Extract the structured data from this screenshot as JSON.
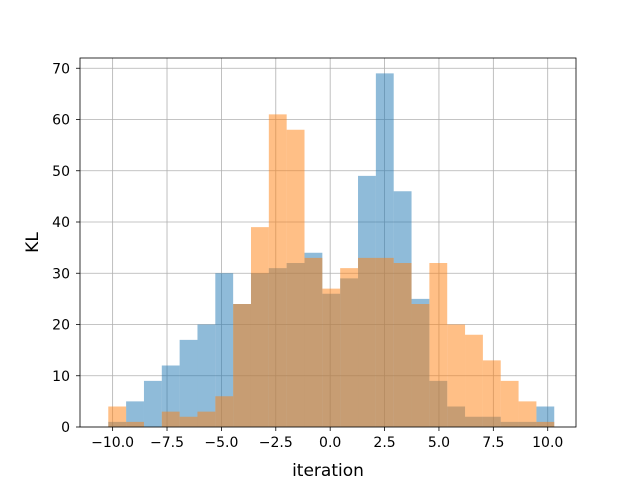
{
  "chart_data": {
    "type": "histogram",
    "title": "",
    "xlabel": "iteration",
    "ylabel": "KL",
    "xlim": [
      -11.5,
      11.3
    ],
    "ylim": [
      0,
      72
    ],
    "xticks": [
      -10.0,
      -7.5,
      -5.0,
      -2.5,
      0.0,
      2.5,
      5.0,
      7.5,
      10.0
    ],
    "xtick_labels": [
      "−10.0",
      "−7.5",
      "−5.0",
      "−2.5",
      "0.0",
      "2.5",
      "5.0",
      "7.5",
      "10.0"
    ],
    "yticks": [
      0,
      10,
      20,
      30,
      40,
      50,
      60,
      70
    ],
    "grid": true,
    "legend": false,
    "bin_edges": [
      -10.2,
      -9.38,
      -8.56,
      -7.74,
      -6.92,
      -6.1,
      -5.28,
      -4.46,
      -3.64,
      -2.82,
      -2.0,
      -1.18,
      -0.36,
      0.46,
      1.28,
      2.1,
      2.92,
      3.74,
      4.56,
      5.38,
      6.2,
      7.02,
      7.84,
      8.66,
      9.48,
      10.3
    ],
    "series": [
      {
        "color": "#1f77b4",
        "alpha": 0.5,
        "values": [
          1,
          5,
          9,
          12,
          17,
          20,
          30,
          24,
          30,
          31,
          32,
          34,
          26,
          29,
          49,
          69,
          46,
          25,
          9,
          4,
          2,
          2,
          1,
          1,
          4
        ]
      },
      {
        "color": "#ff7f0e",
        "alpha": 0.5,
        "values": [
          4,
          1,
          0,
          3,
          2,
          3,
          6,
          24,
          39,
          61,
          58,
          33,
          27,
          31,
          33,
          33,
          32,
          24,
          32,
          20,
          18,
          13,
          9,
          5,
          1
        ]
      }
    ]
  }
}
